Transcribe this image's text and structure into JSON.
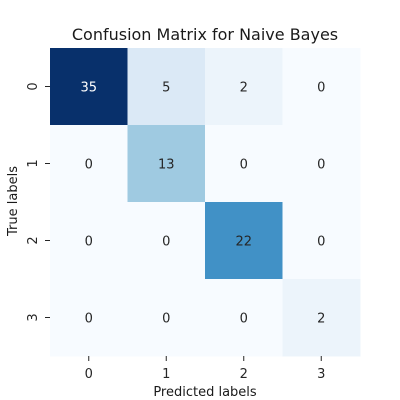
{
  "chart_data": {
    "type": "heatmap",
    "title": "Confusion Matrix for Naive Bayes",
    "xlabel": "Predicted labels",
    "ylabel": "True labels",
    "x_categories": [
      "0",
      "1",
      "2",
      "3"
    ],
    "y_categories": [
      "0",
      "1",
      "2",
      "3"
    ],
    "values": [
      [
        35,
        5,
        2,
        0
      ],
      [
        0,
        13,
        0,
        0
      ],
      [
        0,
        0,
        22,
        0
      ],
      [
        0,
        0,
        0,
        2
      ]
    ],
    "colormap": "Blues",
    "vmin": 0,
    "vmax": 35,
    "colorbar": false
  }
}
